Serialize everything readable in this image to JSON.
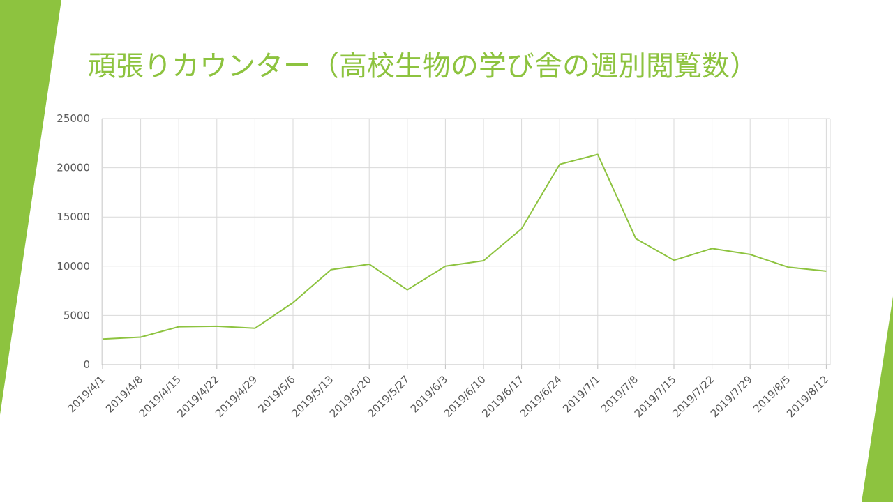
{
  "slide": {
    "title": "頑張りカウンター（高校生物の学び舎の週別閲覧数）",
    "accent_color": "#8dc33f"
  },
  "chart_data": {
    "type": "line",
    "title": "頑張りカウンター（高校生物の学び舎の週別閲覧数）",
    "xlabel": "",
    "ylabel": "",
    "ylim": [
      0,
      25000
    ],
    "yticks": [
      "0",
      "5000",
      "10000",
      "15000",
      "20000",
      "25000"
    ],
    "grid": true,
    "legend": "none",
    "line_color": "#8dc33f",
    "categories": [
      "2019/4/1",
      "2019/4/8",
      "2019/4/15",
      "2019/4/22",
      "2019/4/29",
      "2019/5/6",
      "2019/5/13",
      "2019/5/20",
      "2019/5/27",
      "2019/6/3",
      "2019/6/10",
      "2019/6/17",
      "2019/6/24",
      "2019/7/1",
      "2019/7/8",
      "2019/7/15",
      "2019/7/22",
      "2019/7/29",
      "2019/8/5",
      "2019/8/12"
    ],
    "series": [
      {
        "values": [
          2600,
          2800,
          3850,
          3900,
          3700,
          6300,
          9650,
          10200,
          7600,
          10000,
          10550,
          13800,
          20350,
          21350,
          12800,
          10600,
          11800,
          11200,
          9900,
          9500
        ]
      }
    ]
  }
}
